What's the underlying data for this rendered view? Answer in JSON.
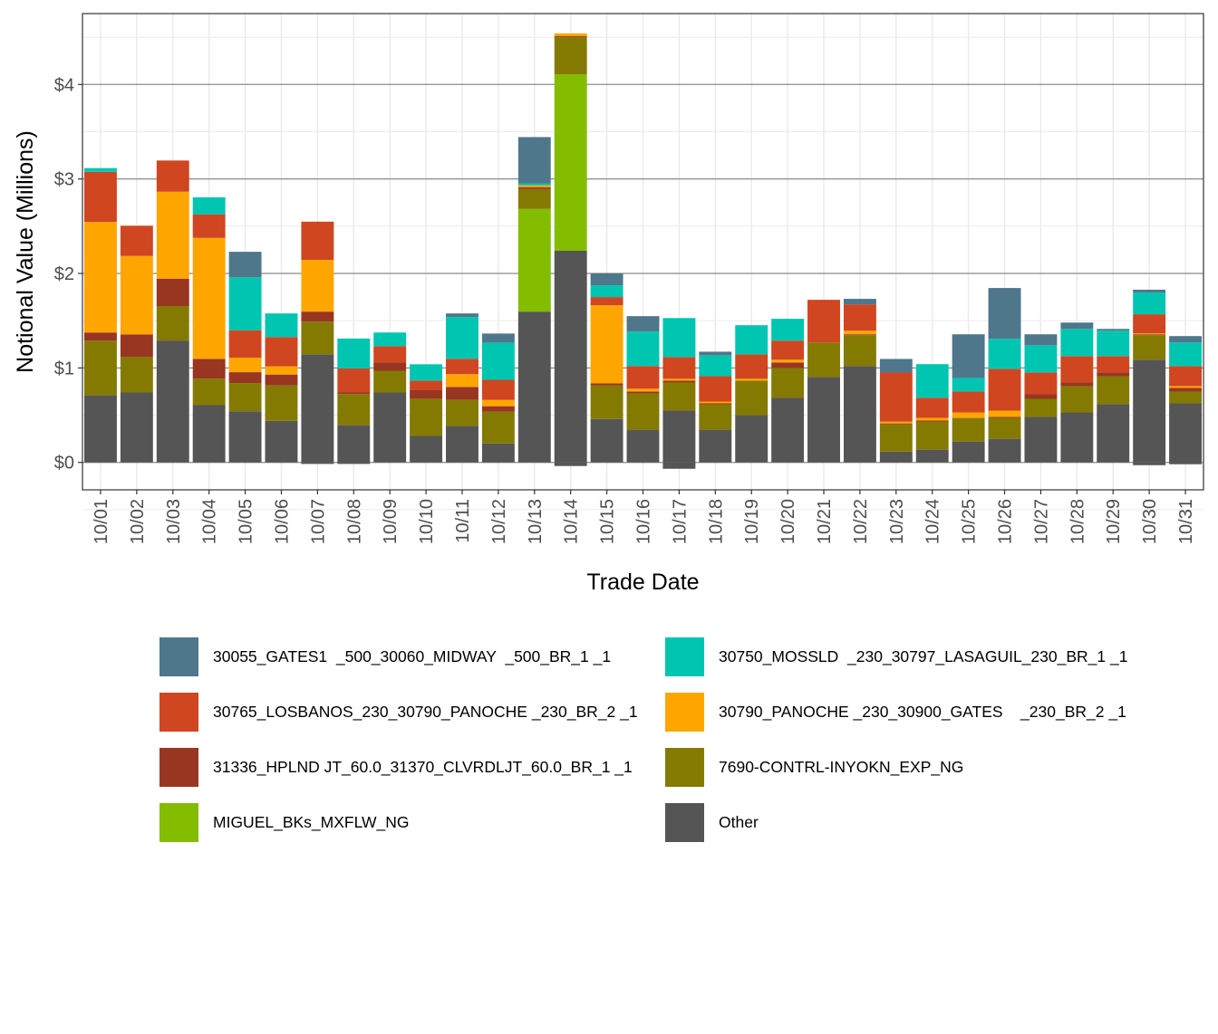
{
  "chart_data": {
    "type": "bar",
    "stacked": true,
    "xlabel": "Trade Date",
    "ylabel": "Notional Value (Millions)",
    "ylim": [
      -0.29,
      4.75
    ],
    "yticks": [
      0,
      1,
      2,
      3,
      4
    ],
    "ytick_labels": [
      "$0",
      "$1",
      "$2",
      "$3",
      "$4"
    ],
    "grid": true,
    "legend_position": "bottom",
    "categories": [
      "10/01",
      "10/02",
      "10/03",
      "10/04",
      "10/05",
      "10/06",
      "10/07",
      "10/08",
      "10/09",
      "10/10",
      "10/11",
      "10/12",
      "10/13",
      "10/14",
      "10/15",
      "10/16",
      "10/17",
      "10/18",
      "10/19",
      "10/20",
      "10/21",
      "10/22",
      "10/23",
      "10/24",
      "10/25",
      "10/26",
      "10/27",
      "10/28",
      "10/29",
      "10/30",
      "10/31"
    ],
    "series": [
      {
        "name": "Other",
        "color": "#555555",
        "values": [
          0.71,
          0.74,
          1.29,
          0.606,
          0.54,
          0.44,
          1.144,
          0.394,
          0.74,
          0.28,
          0.385,
          0.2,
          1.596,
          2.24,
          0.46,
          0.346,
          0.548,
          0.346,
          0.5,
          0.683,
          0.904,
          1.019,
          0.115,
          0.135,
          0.221,
          0.25,
          0.481,
          0.529,
          0.615,
          1.087,
          0.625
        ],
        "negative_values": [
          0,
          0,
          0,
          0,
          0,
          0,
          -0.016,
          -0.016,
          0,
          0,
          0,
          0,
          0,
          -0.038,
          0,
          0,
          -0.067,
          0,
          0,
          0,
          0,
          0,
          0,
          0,
          0,
          0,
          0,
          0,
          0,
          -0.029,
          -0.019
        ]
      },
      {
        "name": "MIGUEL_BKs_MXFLW_NG",
        "color": "#84BC00",
        "values": [
          0,
          0,
          0,
          0,
          0,
          0,
          0,
          0,
          0,
          0,
          0,
          0,
          1.087,
          1.866,
          0,
          0,
          0,
          0,
          0,
          0,
          0,
          0,
          0,
          0,
          0,
          0,
          0,
          0,
          0,
          0,
          0
        ]
      },
      {
        "name": "7690-CONTRL-INYOKN_EXP_NG",
        "color": "#847A02",
        "values": [
          0.58,
          0.375,
          0.365,
          0.28,
          0.3,
          0.375,
          0.346,
          0.33,
          0.23,
          0.394,
          0.279,
          0.337,
          0.21,
          0.394,
          0.356,
          0.385,
          0.298,
          0.269,
          0.365,
          0.317,
          0.365,
          0.327,
          0.288,
          0.298,
          0.25,
          0.221,
          0.192,
          0.279,
          0.298,
          0.259,
          0.125
        ]
      },
      {
        "name": "31336_HPLND JT_60.0_31370_CLVRDLJT_60.0_BR_1 _1",
        "color": "#983622",
        "values": [
          0.085,
          0.24,
          0.29,
          0.21,
          0.115,
          0.115,
          0.106,
          0.02,
          0.087,
          0.096,
          0.135,
          0.058,
          0.02,
          0.01,
          0.02,
          0.02,
          0.019,
          0.01,
          0,
          0.058,
          0,
          0.01,
          0.01,
          0.01,
          0,
          0.01,
          0.048,
          0.038,
          0.039,
          0.01,
          0.038
        ]
      },
      {
        "name": "30790_PANOCHE _230_30900_GATES   _230_BR_2 _1",
        "color": "#FFA500",
        "values": [
          1.17,
          0.83,
          0.92,
          1.28,
          0.154,
          0.087,
          0.548,
          0,
          0,
          0,
          0.135,
          0.067,
          0.02,
          0.03,
          0.827,
          0.029,
          0.02,
          0.019,
          0.02,
          0.029,
          0,
          0.038,
          0.019,
          0.029,
          0.058,
          0.067,
          0,
          0,
          0,
          0.01,
          0.02
        ]
      },
      {
        "name": "30765_LOSBANOS_230_30790_PANOCHE _230_BR_2 _1",
        "color": "#D04620",
        "values": [
          0.53,
          0.32,
          0.33,
          0.25,
          0.29,
          0.31,
          0.404,
          0.25,
          0.173,
          0.096,
          0.163,
          0.212,
          0,
          0,
          0.087,
          0.24,
          0.23,
          0.269,
          0.259,
          0.202,
          0.452,
          0.279,
          0.519,
          0.212,
          0.221,
          0.442,
          0.231,
          0.279,
          0.173,
          0.202,
          0.211
        ]
      },
      {
        "name": "30750_MOSSLD  _230_30797_LASAGUIL_230_BR_1 _1",
        "color": "#00C5B0",
        "values": [
          0.04,
          0,
          0,
          0.18,
          0.56,
          0.25,
          0,
          0.317,
          0.145,
          0.173,
          0.442,
          0.394,
          0.02,
          0,
          0.125,
          0.365,
          0.413,
          0.221,
          0.308,
          0.231,
          0,
          0,
          0,
          0.356,
          0.144,
          0.318,
          0.288,
          0.288,
          0.269,
          0.231,
          0.25
        ]
      },
      {
        "name": "30055_GATES1  _500_30060_MIDWAY  _500_BR_1 _1",
        "color": "#4E778C",
        "values": [
          0,
          0,
          0,
          0,
          0.27,
          0,
          0,
          0,
          0,
          0,
          0.038,
          0.096,
          0.49,
          0,
          0.125,
          0.163,
          0,
          0.038,
          0,
          0,
          0,
          0.058,
          0.144,
          0,
          0.462,
          0.538,
          0.116,
          0.067,
          0.019,
          0.029,
          0.068
        ]
      }
    ]
  },
  "legend": {
    "items": [
      {
        "label": "30055_GATES1  _500_30060_MIDWAY  _500_BR_1 _1",
        "color": "#4E778C"
      },
      {
        "label": "30750_MOSSLD  _230_30797_LASAGUIL_230_BR_1 _1",
        "color": "#00C5B0"
      },
      {
        "label": "30765_LOSBANOS_230_30790_PANOCHE _230_BR_2 _1",
        "color": "#D04620"
      },
      {
        "label": "30790_PANOCHE _230_30900_GATES    _230_BR_2 _1",
        "color": "#FFA500"
      },
      {
        "label": "31336_HPLND JT_60.0_31370_CLVRDLJT_60.0_BR_1 _1",
        "color": "#983622"
      },
      {
        "label": "7690-CONTRL-INYOKN_EXP_NG",
        "color": "#847A02"
      },
      {
        "label": "MIGUEL_BKs_MXFLW_NG",
        "color": "#84BC00"
      },
      {
        "label": "Other",
        "color": "#555555"
      }
    ]
  }
}
